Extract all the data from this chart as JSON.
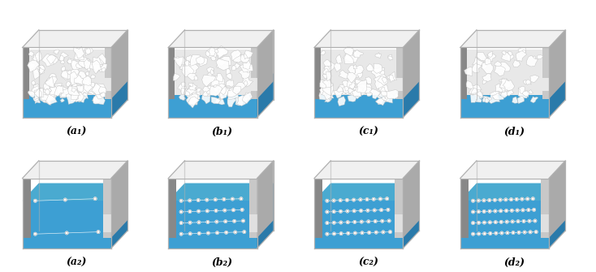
{
  "labels_row1": [
    "(a₁)",
    "(b₁)",
    "(c₁)",
    "(d₁)"
  ],
  "labels_row2": [
    "(a₂)",
    "(b₂)",
    "(c₂)",
    "(d₂)"
  ],
  "background_color": "#ffffff",
  "label_fontsize": 9,
  "box_edge_color": "#b0b0b0",
  "blue_color": "#3d9fd3",
  "blue_dark": "#2a7aaa",
  "blue_top": "#5ab0dd",
  "gray_dark": "#888888",
  "gray_mid": "#aaaaaa",
  "gray_light": "#c8c8c8",
  "gray_side": "#777777",
  "vapor_bg": "#e8e8e8",
  "fig_width": 7.34,
  "fig_height": 3.35,
  "dpi": 100
}
